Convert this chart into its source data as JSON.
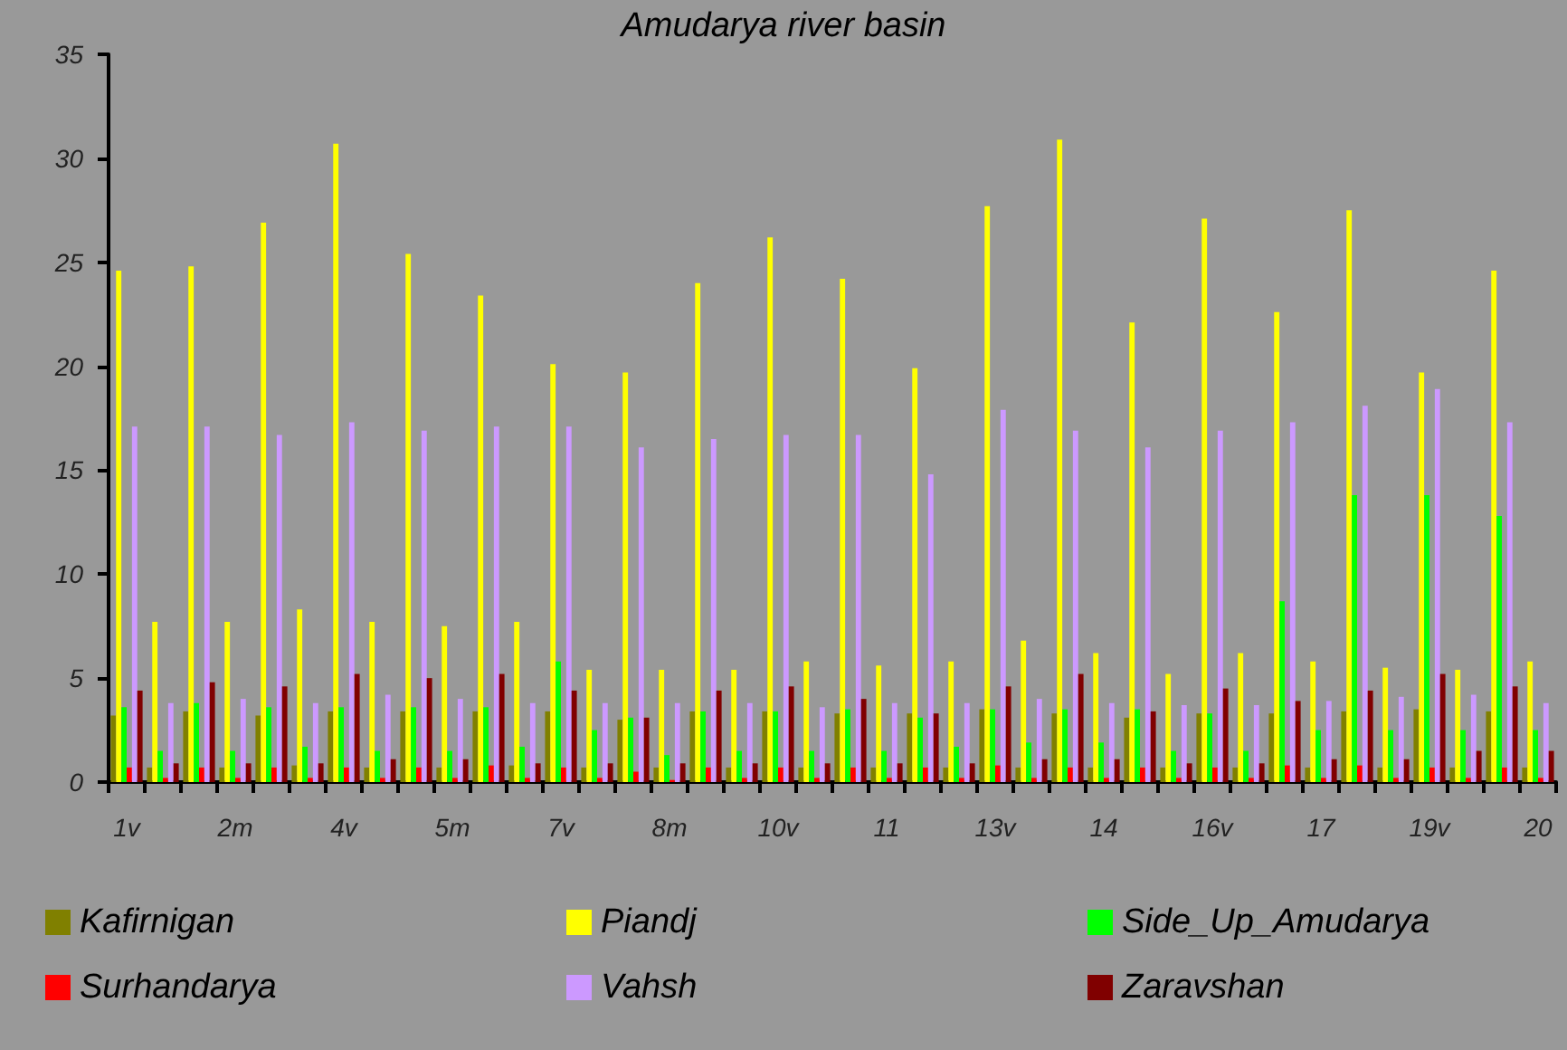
{
  "chart_data": {
    "type": "bar",
    "title": "Amudarya river basin",
    "categories": [
      "1v",
      null,
      null,
      "2m",
      null,
      null,
      "4v",
      null,
      null,
      "5m",
      null,
      null,
      "7v",
      null,
      null,
      "8m",
      null,
      null,
      "10v",
      null,
      null,
      "11",
      null,
      null,
      "13v",
      null,
      null,
      "14",
      null,
      null,
      "16v",
      null,
      null,
      "17",
      null,
      null,
      "19v",
      null,
      null,
      "20"
    ],
    "series": [
      {
        "name": "Kafirnigan",
        "color": "#808000",
        "values": [
          3.2,
          0.7,
          3.4,
          0.7,
          3.2,
          0.8,
          3.4,
          0.7,
          3.4,
          0.7,
          3.4,
          0.8,
          3.4,
          0.7,
          3.0,
          0.7,
          3.4,
          0.7,
          3.4,
          0.7,
          3.3,
          0.7,
          3.3,
          0.7,
          3.5,
          0.7,
          3.3,
          0.7,
          3.1,
          0.7,
          3.3,
          0.7,
          3.3,
          0.7,
          3.4,
          0.7,
          3.5,
          0.7,
          3.4,
          0.7
        ]
      },
      {
        "name": "Piandj",
        "color": "#ffff00",
        "values": [
          24.6,
          7.7,
          24.8,
          7.7,
          26.9,
          8.3,
          30.7,
          7.7,
          25.4,
          7.5,
          23.4,
          7.7,
          20.1,
          5.4,
          19.7,
          5.4,
          24.0,
          5.4,
          26.2,
          5.8,
          24.2,
          5.6,
          19.9,
          5.8,
          27.7,
          6.8,
          30.9,
          6.2,
          22.1,
          5.2,
          27.1,
          6.2,
          22.6,
          5.8,
          27.5,
          5.5,
          19.7,
          5.4,
          24.6,
          5.8
        ]
      },
      {
        "name": "Side_Up_Amudarya",
        "color": "#00ff00",
        "values": [
          3.6,
          1.5,
          3.8,
          1.5,
          3.6,
          1.7,
          3.6,
          1.5,
          3.6,
          1.5,
          3.6,
          1.7,
          5.8,
          2.5,
          3.1,
          1.3,
          3.4,
          1.5,
          3.4,
          1.5,
          3.5,
          1.5,
          3.1,
          1.7,
          3.5,
          1.9,
          3.5,
          1.9,
          3.5,
          1.5,
          3.3,
          1.5,
          8.7,
          2.5,
          13.8,
          2.5,
          13.8,
          2.5,
          12.8,
          2.5
        ]
      },
      {
        "name": "Surhandarya",
        "color": "#ff0000",
        "values": [
          0.7,
          0.2,
          0.7,
          0.2,
          0.7,
          0.2,
          0.7,
          0.2,
          0.7,
          0.2,
          0.8,
          0.2,
          0.7,
          0.2,
          0.5,
          0.1,
          0.7,
          0.2,
          0.7,
          0.2,
          0.7,
          0.2,
          0.7,
          0.2,
          0.8,
          0.2,
          0.7,
          0.2,
          0.7,
          0.2,
          0.7,
          0.2,
          0.8,
          0.2,
          0.8,
          0.2,
          0.7,
          0.2,
          0.7,
          0.2
        ]
      },
      {
        "name": "Vahsh",
        "color": "#cc99ff",
        "values": [
          17.1,
          3.8,
          17.1,
          4.0,
          16.7,
          3.8,
          17.3,
          4.2,
          16.9,
          4.0,
          17.1,
          3.8,
          17.1,
          3.8,
          16.1,
          3.8,
          16.5,
          3.8,
          16.7,
          3.6,
          16.7,
          3.8,
          14.8,
          3.8,
          17.9,
          4.0,
          16.9,
          3.8,
          16.1,
          3.7,
          16.9,
          3.7,
          17.3,
          3.9,
          18.1,
          4.1,
          18.9,
          4.2,
          17.3,
          3.8
        ]
      },
      {
        "name": "Zaravshan",
        "color": "#800000",
        "values": [
          4.4,
          0.9,
          4.8,
          0.9,
          4.6,
          0.9,
          5.2,
          1.1,
          5.0,
          1.1,
          5.2,
          0.9,
          4.4,
          0.9,
          3.1,
          0.9,
          4.4,
          0.9,
          4.6,
          0.9,
          4.0,
          0.9,
          3.3,
          0.9,
          4.6,
          1.1,
          5.2,
          1.1,
          3.4,
          0.9,
          4.5,
          0.9,
          3.9,
          1.1,
          4.4,
          1.1,
          5.2,
          1.5,
          4.6,
          1.5
        ]
      }
    ],
    "ylim": [
      0,
      35
    ],
    "yticks": [
      0,
      5,
      10,
      15,
      20,
      25,
      30,
      35
    ],
    "grid": false,
    "legend": "bottom"
  }
}
